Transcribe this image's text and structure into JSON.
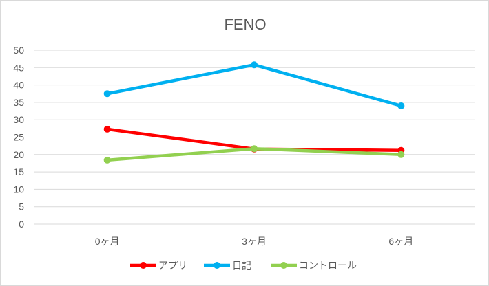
{
  "chart_data": {
    "type": "line",
    "title": "FENO",
    "categories": [
      "0ヶ月",
      "3ヶ月",
      "6ヶ月"
    ],
    "series": [
      {
        "name": "アプリ",
        "color": "#ff0000",
        "values": [
          27.3,
          21.6,
          21.2
        ]
      },
      {
        "name": "日記",
        "color": "#00b0f0",
        "values": [
          37.5,
          45.8,
          34.0
        ]
      },
      {
        "name": "コントロール",
        "color": "#92d050",
        "values": [
          18.4,
          21.7,
          20.0
        ]
      }
    ],
    "ylim": [
      0,
      50
    ],
    "yticks": [
      "0",
      "5",
      "10",
      "15",
      "20",
      "25",
      "30",
      "35",
      "40",
      "45",
      "50"
    ],
    "grid": true,
    "legend": "bottom",
    "xlabel": "",
    "ylabel": ""
  }
}
